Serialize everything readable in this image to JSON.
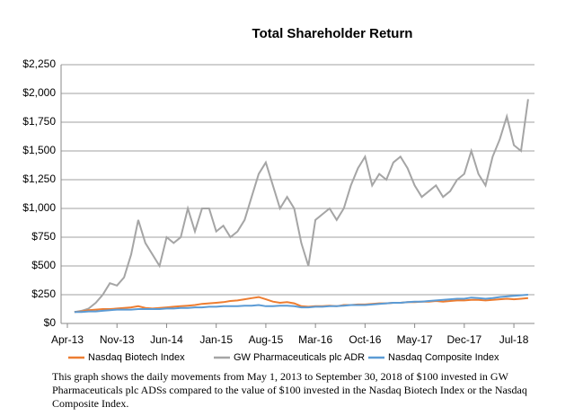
{
  "chart_data": {
    "type": "line",
    "title": "Total Shareholder Return",
    "x": [
      "Apr-13",
      "May-13",
      "Jun-13",
      "Jul-13",
      "Aug-13",
      "Sep-13",
      "Oct-13",
      "Nov-13",
      "Dec-13",
      "Jan-14",
      "Feb-14",
      "Mar-14",
      "Apr-14",
      "May-14",
      "Jun-14",
      "Jul-14",
      "Aug-14",
      "Sep-14",
      "Oct-14",
      "Nov-14",
      "Dec-14",
      "Jan-15",
      "Feb-15",
      "Mar-15",
      "Apr-15",
      "May-15",
      "Jun-15",
      "Jul-15",
      "Aug-15",
      "Sep-15",
      "Oct-15",
      "Nov-15",
      "Dec-15",
      "Jan-16",
      "Feb-16",
      "Mar-16",
      "Apr-16",
      "May-16",
      "Jun-16",
      "Jul-16",
      "Aug-16",
      "Sep-16",
      "Oct-16",
      "Nov-16",
      "Dec-16",
      "Jan-17",
      "Feb-17",
      "Mar-17",
      "Apr-17",
      "May-17",
      "Jun-17",
      "Jul-17",
      "Aug-17",
      "Sep-17",
      "Oct-17",
      "Nov-17",
      "Dec-17",
      "Jan-18",
      "Feb-18",
      "Mar-18",
      "Apr-18",
      "May-18",
      "Jun-18",
      "Jul-18",
      "Aug-18",
      "Sep-18"
    ],
    "series": [
      {
        "name": "Nasdaq Biotech Index",
        "color": "#ed7d31",
        "values": [
          null,
          100,
          105,
          115,
          120,
          125,
          125,
          130,
          135,
          140,
          150,
          135,
          130,
          135,
          140,
          145,
          150,
          155,
          160,
          170,
          175,
          180,
          185,
          195,
          200,
          210,
          220,
          230,
          210,
          190,
          180,
          185,
          175,
          150,
          145,
          150,
          150,
          155,
          150,
          160,
          160,
          165,
          165,
          170,
          175,
          175,
          180,
          180,
          185,
          185,
          190,
          190,
          195,
          190,
          195,
          200,
          200,
          205,
          205,
          200,
          205,
          210,
          215,
          210,
          215,
          220
        ]
      },
      {
        "name": "GW Pharmaceuticals plc ADR",
        "color": "#a5a5a5",
        "values": [
          null,
          100,
          110,
          130,
          180,
          250,
          350,
          330,
          400,
          600,
          900,
          700,
          600,
          500,
          750,
          700,
          750,
          1000,
          800,
          1000,
          1000,
          800,
          850,
          750,
          800,
          900,
          1100,
          1300,
          1400,
          1200,
          1000,
          1100,
          1000,
          700,
          500,
          900,
          950,
          1000,
          900,
          1000,
          1200,
          1350,
          1450,
          1200,
          1300,
          1250,
          1400,
          1450,
          1350,
          1200,
          1100,
          1150,
          1200,
          1100,
          1150,
          1250,
          1300,
          1500,
          1300,
          1200,
          1450,
          1600,
          1800,
          1550,
          1500,
          1950
        ]
      },
      {
        "name": "Nasdaq Composite Index",
        "color": "#5b9bd5",
        "values": [
          null,
          100,
          100,
          105,
          105,
          110,
          115,
          120,
          120,
          120,
          125,
          125,
          125,
          125,
          130,
          130,
          135,
          135,
          140,
          140,
          145,
          145,
          150,
          150,
          150,
          155,
          155,
          160,
          150,
          150,
          155,
          155,
          150,
          140,
          140,
          145,
          145,
          150,
          150,
          155,
          160,
          160,
          160,
          165,
          170,
          175,
          180,
          180,
          185,
          190,
          190,
          195,
          200,
          205,
          210,
          215,
          215,
          225,
          220,
          215,
          220,
          230,
          235,
          240,
          245,
          250
        ]
      }
    ],
    "xticks": [
      "Apr-13",
      "Nov-13",
      "Jun-14",
      "Jan-15",
      "Aug-15",
      "Mar-16",
      "Oct-16",
      "May-17",
      "Dec-17",
      "Jul-18"
    ],
    "ylim": [
      0,
      2250
    ],
    "yticks": [
      {
        "value": 0,
        "label": "$0"
      },
      {
        "value": 250,
        "label": "$250"
      },
      {
        "value": 500,
        "label": "$500"
      },
      {
        "value": 750,
        "label": "$750"
      },
      {
        "value": 1000,
        "label": "$1,000"
      },
      {
        "value": 1250,
        "label": "$1,250"
      },
      {
        "value": 1500,
        "label": "$1,500"
      },
      {
        "value": 1750,
        "label": "$1,750"
      },
      {
        "value": 2000,
        "label": "$2,000"
      },
      {
        "value": 2250,
        "label": "$2,250"
      }
    ],
    "grid": true,
    "legend": "bottom",
    "caption": "This graph shows the daily movements from May 1, 2013 to September 30, 2018 of $100 invested in GW Pharmaceuticals plc ADSs compared to the value of $100 invested in the Nasdaq Biotech Index or the Nasdaq Composite Index."
  }
}
